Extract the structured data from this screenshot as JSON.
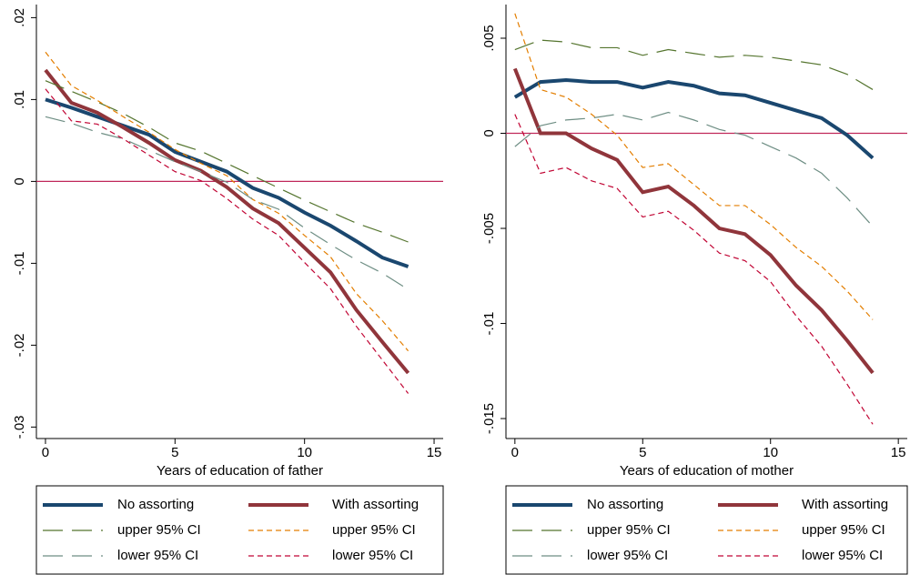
{
  "chart_data": [
    {
      "type": "line",
      "x_label": "Years of education of father",
      "x": [
        0,
        1,
        2,
        3,
        4,
        5,
        6,
        7,
        8,
        9,
        10,
        11,
        12,
        13,
        14
      ],
      "xlim": [
        -0.35,
        15.35
      ],
      "xticks": [
        0,
        5,
        10,
        15
      ],
      "ylim": [
        -0.0314,
        0.0216
      ],
      "yticks": [
        {
          "value": -0.03,
          "label": "-.03"
        },
        {
          "value": -0.02,
          "label": "-.02"
        },
        {
          "value": -0.01,
          "label": "-.01"
        },
        0,
        {
          "value": 0.01,
          "label": ".01"
        },
        {
          "value": 0.02,
          "label": ".02"
        }
      ],
      "reference_line": 0,
      "reference_color": "#c0285a",
      "series": [
        {
          "name": "No assorting",
          "color": "#1a476f",
          "dash": "solid",
          "values": [
            0.01,
            0.009,
            0.0079,
            0.0068,
            0.0057,
            0.0036,
            0.0024,
            0.0012,
            -0.0008,
            -0.002,
            -0.0038,
            -0.0054,
            -0.0073,
            -0.0093,
            -0.0104
          ]
        },
        {
          "name": "With assorting",
          "color": "#90353b",
          "dash": "solid",
          "values": [
            0.0136,
            0.0096,
            0.0084,
            0.0066,
            0.0047,
            0.0026,
            0.0013,
            -0.0007,
            -0.0033,
            -0.0051,
            -0.0081,
            -0.0111,
            -0.0157,
            -0.0196,
            -0.0234
          ]
        },
        {
          "name": "upper 95% CI",
          "color": "#55752f",
          "dash": "long",
          "values": [
            0.0123,
            0.011,
            0.0097,
            0.0083,
            0.0066,
            0.0047,
            0.0037,
            0.0022,
            0.0007,
            -0.0008,
            -0.0023,
            -0.0037,
            -0.0051,
            -0.0062,
            -0.0074
          ]
        },
        {
          "name": "upper 95% CI",
          "color": "#e37e00",
          "dash": "short",
          "values": [
            0.0158,
            0.0117,
            0.0099,
            0.0079,
            0.006,
            0.0039,
            0.0022,
            0.0007,
            -0.0022,
            -0.0039,
            -0.0066,
            -0.0092,
            -0.0137,
            -0.017,
            -0.0207
          ]
        },
        {
          "name": "lower 95% CI",
          "color": "#6e8e84",
          "dash": "long",
          "values": [
            0.0079,
            0.0071,
            0.006,
            0.0052,
            0.0038,
            0.0024,
            0.0012,
            -0.0001,
            -0.0022,
            -0.0034,
            -0.0057,
            -0.0077,
            -0.0096,
            -0.0112,
            -0.0132
          ]
        },
        {
          "name": "lower 95% CI",
          "color": "#c10534",
          "dash": "short",
          "values": [
            0.0113,
            0.0074,
            0.007,
            0.0052,
            0.0032,
            0.0012,
            0.0001,
            -0.0021,
            -0.0046,
            -0.0066,
            -0.0099,
            -0.0131,
            -0.0177,
            -0.0218,
            -0.0259
          ]
        }
      ]
    },
    {
      "type": "line",
      "x_label": "Years of education of mother",
      "x": [
        0,
        1,
        2,
        3,
        4,
        5,
        6,
        7,
        8,
        9,
        10,
        11,
        12,
        13,
        14
      ],
      "xlim": [
        -0.35,
        15.35
      ],
      "xticks": [
        0,
        5,
        10,
        15
      ],
      "ylim": [
        -0.01605,
        0.00677
      ],
      "yticks": [
        {
          "value": -0.015,
          "label": "-.015"
        },
        {
          "value": -0.01,
          "label": "-.01"
        },
        {
          "value": -0.005,
          "label": "-.005"
        },
        0,
        {
          "value": 0.005,
          "label": ".005"
        }
      ],
      "reference_line": 0,
      "reference_color": "#c0285a",
      "series": [
        {
          "name": "No assorting",
          "color": "#1a476f",
          "dash": "solid",
          "values": [
            0.0019,
            0.0027,
            0.0028,
            0.0027,
            0.0027,
            0.0024,
            0.0027,
            0.0025,
            0.0021,
            0.002,
            0.0016,
            0.0012,
            0.0008,
            -0.0001,
            -0.0013
          ]
        },
        {
          "name": "With assorting",
          "color": "#90353b",
          "dash": "solid",
          "values": [
            0.0034,
            0.0,
            -0.0,
            -0.0008,
            -0.0014,
            -0.0031,
            -0.0028,
            -0.0038,
            -0.005,
            -0.0053,
            -0.0064,
            -0.008,
            -0.0093,
            -0.0109,
            -0.0126
          ]
        },
        {
          "name": "upper 95% CI",
          "color": "#55752f",
          "dash": "long",
          "values": [
            0.0044,
            0.0049,
            0.0048,
            0.0045,
            0.0045,
            0.0041,
            0.0044,
            0.0042,
            0.004,
            0.0041,
            0.004,
            0.0038,
            0.0036,
            0.0031,
            0.0023
          ]
        },
        {
          "name": "upper 95% CI",
          "color": "#e37e00",
          "dash": "short",
          "values": [
            0.0063,
            0.0023,
            0.0019,
            0.001,
            -0.0001,
            -0.0018,
            -0.0016,
            -0.0027,
            -0.0038,
            -0.0038,
            -0.0048,
            -0.006,
            -0.007,
            -0.0083,
            -0.0098
          ]
        },
        {
          "name": "lower 95% CI",
          "color": "#6e8e84",
          "dash": "long",
          "values": [
            -0.0007,
            0.0004,
            0.0007,
            0.0008,
            0.001,
            0.0007,
            0.0011,
            0.0007,
            0.0002,
            -0.0001,
            -0.0007,
            -0.0013,
            -0.0021,
            -0.0034,
            -0.0049
          ]
        },
        {
          "name": "lower 95% CI",
          "color": "#c10534",
          "dash": "short",
          "values": [
            0.001,
            -0.0021,
            -0.0018,
            -0.0025,
            -0.0029,
            -0.0044,
            -0.0041,
            -0.0051,
            -0.0063,
            -0.0067,
            -0.0078,
            -0.0096,
            -0.0112,
            -0.0132,
            -0.0153
          ]
        }
      ]
    }
  ]
}
